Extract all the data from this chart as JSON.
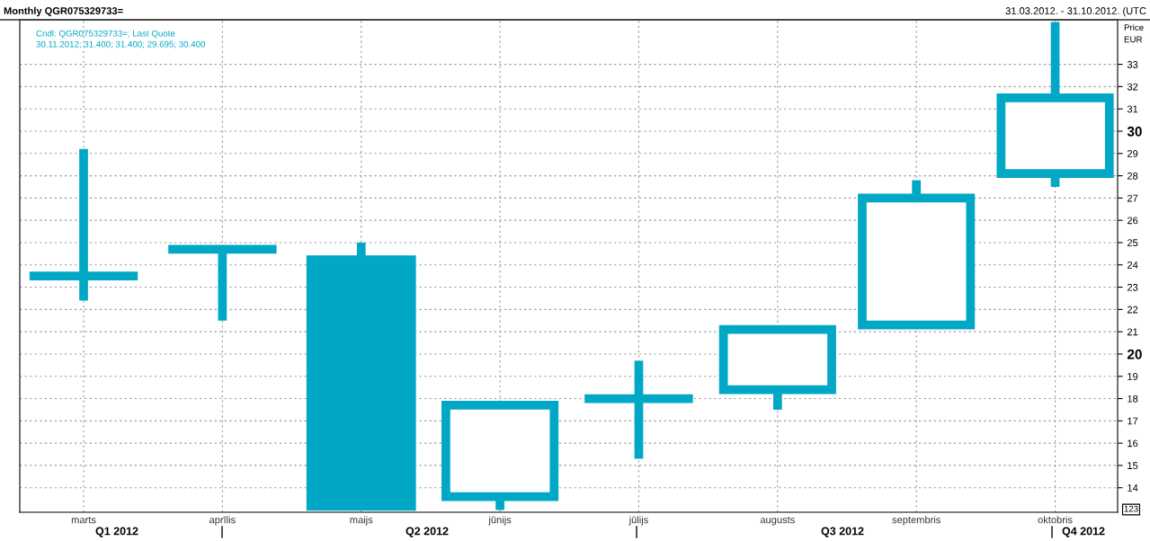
{
  "chart_data": {
    "type": "candlestick",
    "title": "Monthly QGR075329733=",
    "subtitle": "31.03.2012. - 31.10.2012. (UTC",
    "ylabel": "Price\nEUR",
    "categories": [
      "marts",
      "aprīlis",
      "maijs",
      "jūnijs",
      "jūlijs",
      "augusts",
      "septembris",
      "oktobris"
    ],
    "ohlc": [
      [
        23.5,
        29.2,
        22.4,
        23.5
      ],
      [
        24.7,
        24.8,
        21.5,
        24.7
      ],
      [
        24.4,
        25.0,
        13.0,
        13.0
      ],
      [
        13.6,
        17.8,
        13.0,
        17.7
      ],
      [
        18.0,
        19.7,
        15.3,
        18.0
      ],
      [
        18.4,
        21.2,
        17.5,
        21.1
      ],
      [
        21.3,
        27.8,
        21.2,
        27.0
      ],
      [
        28.1,
        34.9,
        27.5,
        31.5
      ]
    ],
    "color": "#00a8c6",
    "ylim": [
      12.9,
      35.0
    ],
    "yticks": [
      14,
      15,
      16,
      17,
      18,
      19,
      20,
      21,
      22,
      23,
      24,
      25,
      26,
      27,
      28,
      29,
      30,
      31,
      32,
      33
    ],
    "grid": true,
    "annotations": [
      "Cndl: QGR075329733=; Last Quote",
      "30.11.2012; 31.400; 31.400; 29.695; 30.400",
      "Q1 2012",
      "Q2 2012",
      "Q3 2012",
      "Q4 2012",
      "123"
    ]
  }
}
